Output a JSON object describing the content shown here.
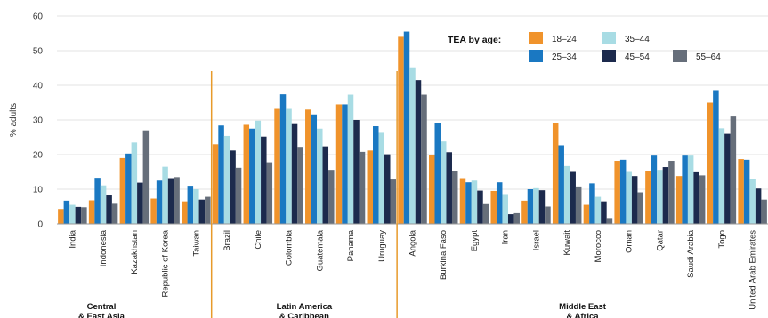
{
  "chart_data": {
    "type": "bar",
    "ylabel": "% adults",
    "ylim": [
      0,
      60
    ],
    "yticks": [
      0,
      10,
      20,
      30,
      40,
      50,
      60
    ],
    "grid": true,
    "legend": {
      "title": "TEA by age:",
      "placement": "top-right"
    },
    "categories": [
      "India",
      "Indonesia",
      "Kazakhstan",
      "Republic of Korea",
      "Taiwan",
      "Brazil",
      "Chile",
      "Colombia",
      "Guatemala",
      "Panama",
      "Uruguay",
      "Angola",
      "Burkina Faso",
      "Egypt",
      "Iran",
      "Israel",
      "Kuwait",
      "Morocco",
      "Oman",
      "Qatar",
      "Saudi Arabia",
      "Togo",
      "United Arab Emirates"
    ],
    "regions": [
      {
        "name": "Central & East Asia",
        "count": 5
      },
      {
        "name": "Latin America & Caribbean",
        "count": 6
      },
      {
        "name": "Middle East & Africa",
        "count": 12
      }
    ],
    "series": [
      {
        "name": "18–24",
        "color": "#f0932b",
        "values": [
          4.3,
          6.8,
          19,
          7.3,
          6.5,
          23,
          28.6,
          33.2,
          33,
          34.5,
          21.2,
          54,
          20,
          13.2,
          9.5,
          6.7,
          29,
          5.5,
          18.2,
          15.3,
          13.8,
          35,
          18.7
        ]
      },
      {
        "name": "25–34",
        "color": "#1a78c2",
        "values": [
          6.7,
          13.3,
          20.3,
          12.5,
          11,
          28.4,
          27.5,
          37.4,
          31.6,
          34.5,
          28.2,
          55.5,
          29,
          12,
          12,
          10,
          22.7,
          11.7,
          18.5,
          19.7,
          19.7,
          38.6,
          18.5
        ]
      },
      {
        "name": "35–44",
        "color": "#a8dce4",
        "values": [
          5.5,
          11.1,
          23.5,
          16.5,
          10,
          25.4,
          29.8,
          33.2,
          27.5,
          37.3,
          26.3,
          45.2,
          23.8,
          12.5,
          8.6,
          10.3,
          16.7,
          7.8,
          15,
          15.6,
          19.7,
          27.6,
          13
        ]
      },
      {
        "name": "45–54",
        "color": "#1c2a4d",
        "values": [
          4.9,
          8.2,
          11.9,
          13.2,
          7,
          21.2,
          25.2,
          28.8,
          22.4,
          30,
          20.1,
          41.5,
          20.7,
          9.6,
          2.8,
          9.7,
          15,
          6.5,
          13.8,
          16.4,
          14.9,
          26,
          10.2
        ]
      },
      {
        "name": "55–64",
        "color": "#666e7a",
        "values": [
          4.8,
          5.8,
          27,
          13.5,
          7.8,
          16.2,
          17.8,
          22,
          15.6,
          20.8,
          12.8,
          37.3,
          15.3,
          5.7,
          3.1,
          5,
          10.8,
          1.7,
          9.1,
          18.2,
          14,
          31,
          7
        ]
      }
    ]
  }
}
